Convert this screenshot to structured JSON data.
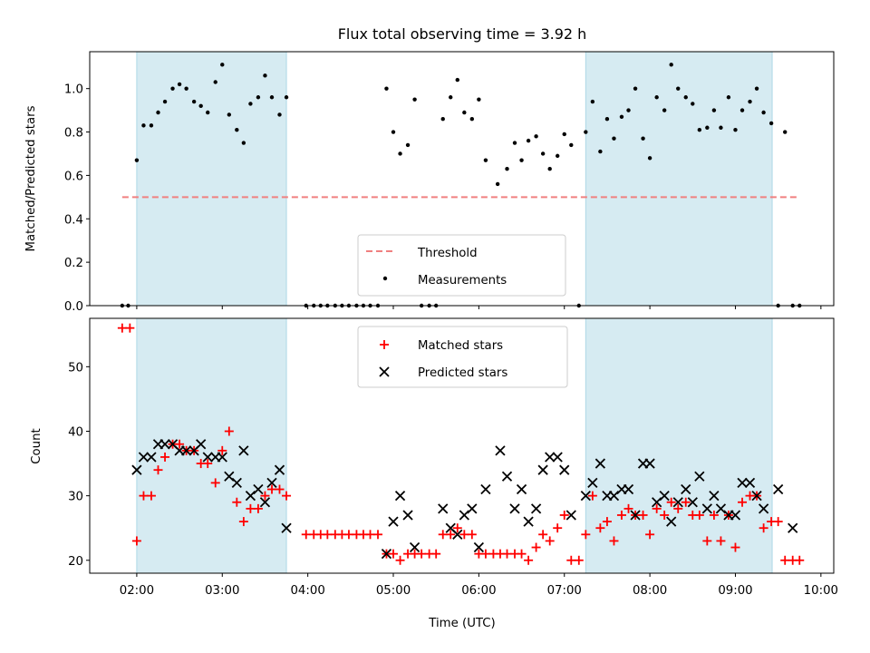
{
  "chart_data": {
    "title": "Flux total observing time = 3.92 h",
    "xlabel": "Time (UTC)",
    "xticks": [
      "02:00",
      "03:00",
      "04:00",
      "05:00",
      "06:00",
      "07:00",
      "08:00",
      "09:00",
      "10:00"
    ],
    "xlim_hours": [
      1.45,
      10.15
    ],
    "shaded_intervals_hours": [
      [
        2.0,
        3.75
      ],
      [
        7.25,
        9.43
      ]
    ],
    "shade_color": "#add8e6",
    "panels": [
      {
        "type": "scatter",
        "ylabel": "Matched/Predicted stars",
        "ylim": [
          0,
          1.17
        ],
        "yticks": [
          "0.0",
          "0.2",
          "0.4",
          "0.6",
          "0.8",
          "1.0"
        ],
        "legend_position": "lower center",
        "threshold": {
          "name": "Threshold",
          "value": 0.5,
          "x_range": [
            1.83,
            9.75
          ],
          "color": "#f08080"
        },
        "series": [
          {
            "name": "Measurements",
            "color": "#000000",
            "x": [
              1.83,
              1.9,
              2.0,
              2.08,
              2.17,
              2.25,
              2.33,
              2.42,
              2.5,
              2.58,
              2.67,
              2.75,
              2.83,
              2.92,
              3.0,
              3.08,
              3.17,
              3.25,
              3.33,
              3.42,
              3.5,
              3.58,
              3.67,
              3.75,
              3.98,
              4.07,
              4.15,
              4.23,
              4.32,
              4.4,
              4.48,
              4.57,
              4.65,
              4.73,
              4.82,
              4.92,
              5.0,
              5.08,
              5.17,
              5.25,
              5.33,
              5.42,
              5.5,
              5.58,
              5.67,
              5.75,
              5.83,
              5.92,
              6.0,
              6.08,
              6.22,
              6.33,
              6.42,
              6.5,
              6.58,
              6.67,
              6.75,
              6.83,
              6.92,
              7.0,
              7.08,
              7.17,
              7.25,
              7.33,
              7.42,
              7.5,
              7.58,
              7.67,
              7.75,
              7.83,
              7.92,
              8.0,
              8.08,
              8.17,
              8.25,
              8.33,
              8.42,
              8.5,
              8.58,
              8.67,
              8.75,
              8.83,
              8.92,
              9.0,
              9.08,
              9.17,
              9.25,
              9.33,
              9.42,
              9.5,
              9.58,
              9.67,
              9.75
            ],
            "y": [
              0,
              0,
              0.67,
              0.83,
              0.83,
              0.89,
              0.94,
              1.0,
              1.02,
              1.0,
              0.94,
              0.92,
              0.89,
              1.03,
              1.11,
              0.88,
              0.81,
              0.75,
              0.93,
              0.96,
              1.06,
              0.96,
              0.88,
              0.96,
              0,
              0,
              0,
              0,
              0,
              0,
              0,
              0,
              0,
              0,
              0,
              1.0,
              0.8,
              0.7,
              0.74,
              0.95,
              0,
              0,
              0,
              0.86,
              0.96,
              1.04,
              0.89,
              0.86,
              0.95,
              0.67,
              0.56,
              0.63,
              0.75,
              0.67,
              0.76,
              0.78,
              0.7,
              0.63,
              0.69,
              0.79,
              0.74,
              0,
              0.8,
              0.94,
              0.71,
              0.86,
              0.77,
              0.87,
              0.9,
              1.0,
              0.77,
              0.68,
              0.96,
              0.9,
              1.11,
              1.0,
              0.96,
              0.93,
              0.81,
              0.82,
              0.9,
              0.82,
              0.96,
              0.81,
              0.9,
              0.94,
              1.0,
              0.89,
              0.84,
              0,
              0.8,
              0,
              0
            ]
          }
        ]
      },
      {
        "type": "scatter",
        "ylabel": "Count",
        "ylim": [
          18,
          57.5
        ],
        "yticks": [
          "20",
          "30",
          "40",
          "50"
        ],
        "legend_position": "upper center",
        "series": [
          {
            "name": "Matched stars",
            "marker": "+",
            "color": "#ff0000",
            "x": [
              1.83,
              1.92,
              2.0,
              2.08,
              2.17,
              2.25,
              2.33,
              2.42,
              2.5,
              2.58,
              2.67,
              2.75,
              2.83,
              2.92,
              3.0,
              3.08,
              3.17,
              3.25,
              3.33,
              3.42,
              3.5,
              3.58,
              3.67,
              3.75,
              3.98,
              4.07,
              4.15,
              4.23,
              4.32,
              4.4,
              4.48,
              4.57,
              4.65,
              4.73,
              4.82,
              4.92,
              5.0,
              5.08,
              5.17,
              5.25,
              5.33,
              5.42,
              5.5,
              5.58,
              5.67,
              5.75,
              5.83,
              5.92,
              6.0,
              6.08,
              6.17,
              6.25,
              6.33,
              6.42,
              6.5,
              6.58,
              6.67,
              6.75,
              6.83,
              6.92,
              7.0,
              7.08,
              7.17,
              7.25,
              7.33,
              7.42,
              7.5,
              7.58,
              7.67,
              7.75,
              7.83,
              7.92,
              8.0,
              8.08,
              8.17,
              8.25,
              8.33,
              8.42,
              8.5,
              8.58,
              8.67,
              8.75,
              8.83,
              8.92,
              9.0,
              9.08,
              9.17,
              9.25,
              9.33,
              9.42,
              9.5,
              9.58,
              9.67,
              9.75
            ],
            "y": [
              56,
              56,
              23,
              30,
              30,
              34,
              36,
              38,
              38,
              37,
              37,
              35,
              35,
              32,
              37,
              40,
              29,
              26,
              28,
              28,
              30,
              31,
              31,
              30,
              24,
              24,
              24,
              24,
              24,
              24,
              24,
              24,
              24,
              24,
              24,
              21,
              21,
              20,
              21,
              21,
              21,
              21,
              21,
              24,
              24,
              25,
              24,
              24,
              21,
              21,
              21,
              21,
              21,
              21,
              21,
              20,
              22,
              24,
              23,
              25,
              27,
              20,
              20,
              24,
              30,
              25,
              26,
              23,
              27,
              28,
              27,
              27,
              24,
              28,
              27,
              29,
              28,
              29,
              27,
              27,
              23,
              27,
              23,
              27,
              22,
              29,
              30,
              30,
              25,
              26,
              26,
              20,
              20,
              20
            ]
          },
          {
            "name": "Predicted stars",
            "marker": "x",
            "color": "#000000",
            "x": [
              2.0,
              2.08,
              2.17,
              2.25,
              2.33,
              2.42,
              2.5,
              2.58,
              2.67,
              2.75,
              2.83,
              2.92,
              3.0,
              3.08,
              3.17,
              3.25,
              3.33,
              3.42,
              3.5,
              3.58,
              3.67,
              3.75,
              4.92,
              5.0,
              5.08,
              5.17,
              5.25,
              5.58,
              5.67,
              5.75,
              5.83,
              5.92,
              6.0,
              6.08,
              6.25,
              6.33,
              6.42,
              6.5,
              6.58,
              6.67,
              6.75,
              6.83,
              6.92,
              7.0,
              7.08,
              7.25,
              7.33,
              7.42,
              7.5,
              7.58,
              7.67,
              7.75,
              7.83,
              7.92,
              8.0,
              8.08,
              8.17,
              8.25,
              8.33,
              8.42,
              8.5,
              8.58,
              8.67,
              8.75,
              8.83,
              8.92,
              9.0,
              9.08,
              9.17,
              9.25,
              9.33,
              9.5,
              9.67
            ],
            "y": [
              34,
              36,
              36,
              38,
              38,
              38,
              37,
              37,
              37,
              38,
              36,
              36,
              36,
              33,
              32,
              37,
              30,
              31,
              29,
              32,
              34,
              25,
              21,
              26,
              30,
              27,
              22,
              28,
              25,
              24,
              27,
              28,
              22,
              31,
              37,
              33,
              28,
              31,
              26,
              28,
              34,
              36,
              36,
              34,
              27,
              30,
              32,
              35,
              30,
              30,
              31,
              31,
              27,
              35,
              35,
              29,
              30,
              26,
              29,
              31,
              29,
              33,
              28,
              30,
              28,
              27,
              27,
              32,
              32,
              30,
              28,
              31,
              25
            ]
          }
        ]
      }
    ]
  }
}
